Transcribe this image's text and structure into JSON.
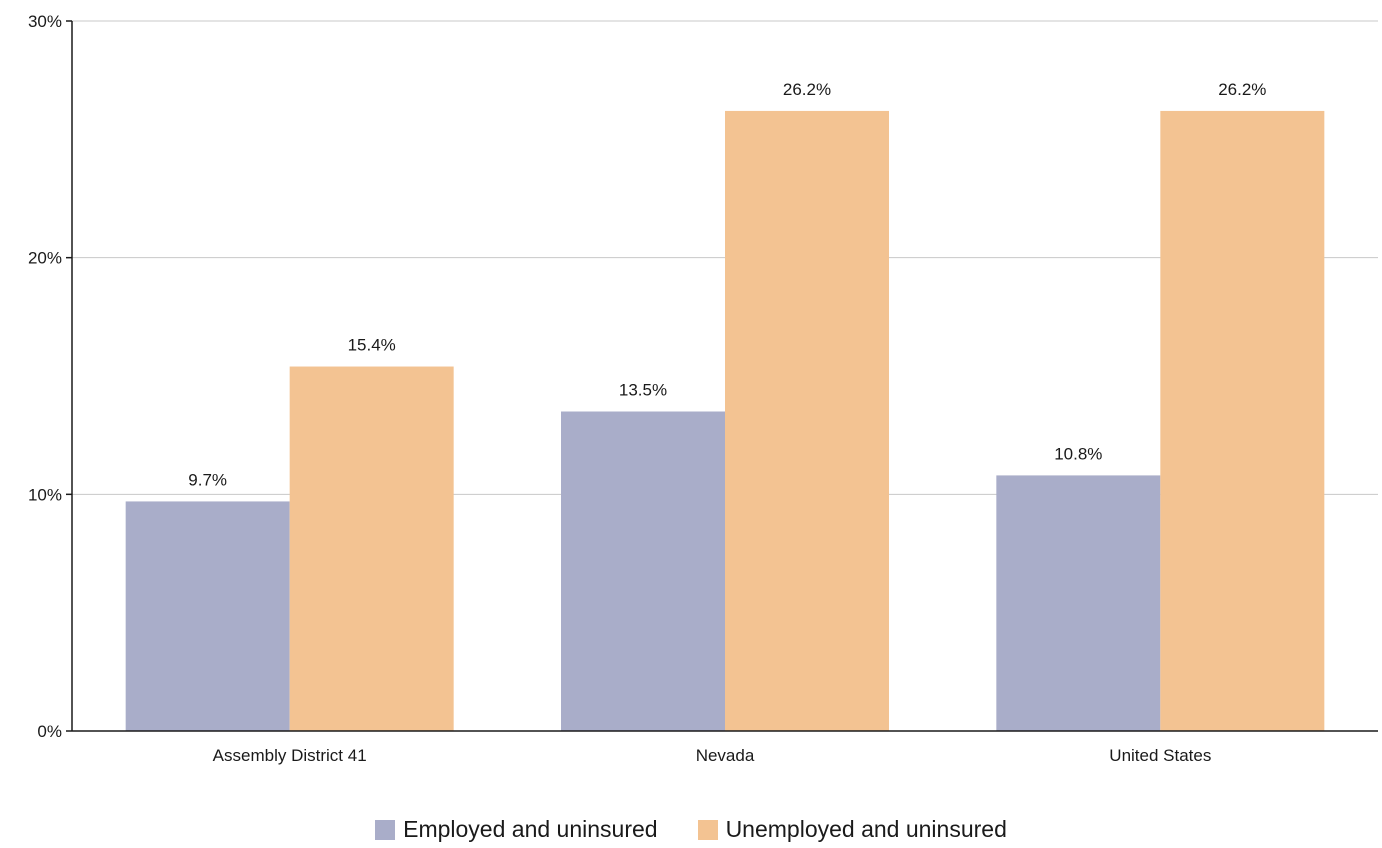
{
  "chart_data": {
    "type": "bar",
    "categories": [
      "Assembly District 41",
      "Nevada",
      "United States"
    ],
    "series": [
      {
        "name": "Employed and uninsured",
        "values": [
          9.7,
          13.5,
          10.8
        ],
        "labels": [
          "9.7%",
          "13.5%",
          "10.8%"
        ],
        "color": "#a9adc9"
      },
      {
        "name": "Unemployed and uninsured",
        "values": [
          15.4,
          26.2,
          26.2
        ],
        "labels": [
          "15.4%",
          "26.2%",
          "26.2%"
        ],
        "color": "#f3c392"
      }
    ],
    "ylim": [
      0,
      30
    ],
    "yticks": [
      0,
      10,
      20,
      30
    ],
    "ytick_labels": [
      "0%",
      "10%",
      "20%",
      "30%"
    ],
    "grid": true,
    "legend_position": "bottom"
  }
}
